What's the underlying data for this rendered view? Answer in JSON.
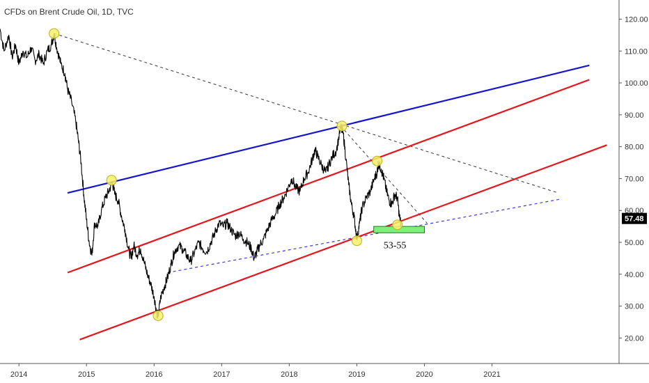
{
  "header": {
    "title": "CFDs on Brent Crude Oil, 1D, TVC"
  },
  "colors": {
    "price": "#000000",
    "blue_line": "#1515d1",
    "red_line": "#e8141c",
    "dashed_black": "#333333",
    "dashed_blue": "#3b3bd1",
    "marker_fill": "#f7f06a",
    "marker_stroke": "#b9b21b",
    "zone_fill": "#7ef07a",
    "zone_stroke": "#1f7a1f",
    "price_tag": "#000000",
    "axis_line": "#555555"
  },
  "chart_data": {
    "type": "line",
    "title": "CFDs on Brent Crude Oil, 1D, TVC",
    "xlabel": "",
    "ylabel": "",
    "ylim": [
      12,
      126
    ],
    "xlim": [
      2013.72,
      2022.88
    ],
    "x_ticks": [
      2014,
      2015,
      2016,
      2017,
      2018,
      2019,
      2020,
      2021
    ],
    "x_tick_labels": [
      "2014",
      "2015",
      "2016",
      "2017",
      "2018",
      "2019",
      "2020",
      "2021"
    ],
    "y_ticks": [
      20,
      30,
      40,
      50,
      60,
      70,
      80,
      90,
      100,
      110,
      120
    ],
    "y_tick_labels": [
      "20.00",
      "30.00",
      "40.00",
      "50.00",
      "60.00",
      "70.00",
      "80.00",
      "90.00",
      "100.00",
      "110.00",
      "120.00"
    ],
    "last_price": 57.48,
    "last_price_label": "57.48",
    "grid": false,
    "series": [
      {
        "points": [
          [
            2013.72,
            117
          ],
          [
            2013.78,
            110
          ],
          [
            2013.85,
            115
          ],
          [
            2013.9,
            108
          ],
          [
            2013.95,
            112
          ],
          [
            2014.0,
            106
          ],
          [
            2014.06,
            110
          ],
          [
            2014.12,
            108
          ],
          [
            2014.18,
            111
          ],
          [
            2014.24,
            107
          ],
          [
            2014.3,
            109
          ],
          [
            2014.36,
            106
          ],
          [
            2014.42,
            110
          ],
          [
            2014.48,
            112
          ],
          [
            2014.52,
            115.5
          ],
          [
            2014.56,
            111
          ],
          [
            2014.62,
            106
          ],
          [
            2014.68,
            103
          ],
          [
            2014.72,
            98
          ],
          [
            2014.78,
            94
          ],
          [
            2014.84,
            88
          ],
          [
            2014.88,
            82
          ],
          [
            2014.92,
            75
          ],
          [
            2014.96,
            65
          ],
          [
            2015.0,
            57
          ],
          [
            2015.04,
            50
          ],
          [
            2015.08,
            46
          ],
          [
            2015.12,
            56
          ],
          [
            2015.17,
            55
          ],
          [
            2015.22,
            60
          ],
          [
            2015.28,
            64
          ],
          [
            2015.33,
            66
          ],
          [
            2015.38,
            69
          ],
          [
            2015.42,
            65
          ],
          [
            2015.47,
            63
          ],
          [
            2015.52,
            58
          ],
          [
            2015.57,
            54
          ],
          [
            2015.62,
            48
          ],
          [
            2015.66,
            45
          ],
          [
            2015.7,
            49
          ],
          [
            2015.75,
            46
          ],
          [
            2015.8,
            48
          ],
          [
            2015.85,
            44
          ],
          [
            2015.9,
            40
          ],
          [
            2015.95,
            37
          ],
          [
            2016.0,
            33
          ],
          [
            2016.04,
            28
          ],
          [
            2016.06,
            27
          ],
          [
            2016.1,
            33
          ],
          [
            2016.15,
            36
          ],
          [
            2016.2,
            39
          ],
          [
            2016.25,
            43
          ],
          [
            2016.3,
            47
          ],
          [
            2016.36,
            49
          ],
          [
            2016.42,
            48
          ],
          [
            2016.48,
            46
          ],
          [
            2016.54,
            44
          ],
          [
            2016.6,
            47
          ],
          [
            2016.66,
            50
          ],
          [
            2016.72,
            48
          ],
          [
            2016.78,
            47
          ],
          [
            2016.84,
            50
          ],
          [
            2016.9,
            53
          ],
          [
            2016.96,
            56
          ],
          [
            2017.02,
            55
          ],
          [
            2017.08,
            56
          ],
          [
            2017.14,
            54
          ],
          [
            2017.2,
            52
          ],
          [
            2017.26,
            53
          ],
          [
            2017.32,
            51
          ],
          [
            2017.38,
            50
          ],
          [
            2017.44,
            48
          ],
          [
            2017.48,
            45
          ],
          [
            2017.52,
            47
          ],
          [
            2017.56,
            49
          ],
          [
            2017.62,
            51
          ],
          [
            2017.68,
            54
          ],
          [
            2017.74,
            57
          ],
          [
            2017.8,
            59
          ],
          [
            2017.86,
            62
          ],
          [
            2017.92,
            64
          ],
          [
            2017.98,
            67
          ],
          [
            2018.04,
            70
          ],
          [
            2018.1,
            67
          ],
          [
            2018.16,
            66
          ],
          [
            2018.22,
            70
          ],
          [
            2018.28,
            72
          ],
          [
            2018.34,
            76
          ],
          [
            2018.38,
            79
          ],
          [
            2018.42,
            77
          ],
          [
            2018.48,
            74
          ],
          [
            2018.54,
            72
          ],
          [
            2018.58,
            74
          ],
          [
            2018.64,
            77
          ],
          [
            2018.7,
            79
          ],
          [
            2018.76,
            86
          ],
          [
            2018.8,
            84
          ],
          [
            2018.84,
            76
          ],
          [
            2018.88,
            68
          ],
          [
            2018.92,
            62
          ],
          [
            2018.96,
            58
          ],
          [
            2019.0,
            51
          ],
          [
            2019.04,
            56
          ],
          [
            2019.08,
            61
          ],
          [
            2019.14,
            64
          ],
          [
            2019.2,
            66
          ],
          [
            2019.26,
            70
          ],
          [
            2019.3,
            72
          ],
          [
            2019.32,
            75
          ],
          [
            2019.36,
            73
          ],
          [
            2019.4,
            70
          ],
          [
            2019.44,
            66
          ],
          [
            2019.48,
            63
          ],
          [
            2019.52,
            62
          ],
          [
            2019.56,
            65
          ],
          [
            2019.6,
            64
          ],
          [
            2019.63,
            58
          ],
          [
            2019.65,
            56
          ]
        ]
      }
    ],
    "annotations": {
      "blue_line": [
        [
          2014.72,
          65.5
        ],
        [
          2022.44,
          105.5
        ]
      ],
      "red_upper": [
        [
          2014.72,
          40.5
        ],
        [
          2022.44,
          101
        ]
      ],
      "red_lower": [
        [
          2014.9,
          19.5
        ],
        [
          2022.7,
          80.5
        ]
      ],
      "dashed_black_1": [
        [
          2014.52,
          115.5
        ],
        [
          2021.98,
          65.5
        ]
      ],
      "dashed_black_2": [
        [
          2018.76,
          86.5
        ],
        [
          2020.04,
          56
        ]
      ],
      "dashed_blue": [
        [
          2016.2,
          40.5
        ],
        [
          2022.0,
          63.5
        ]
      ],
      "markers": [
        [
          2014.52,
          115.5
        ],
        [
          2015.37,
          69.5
        ],
        [
          2016.06,
          27
        ],
        [
          2018.78,
          86.5
        ],
        [
          2019.0,
          50.5
        ],
        [
          2019.3,
          75.5
        ],
        [
          2019.6,
          55.5
        ]
      ],
      "support_zone": {
        "x": [
          2019.25,
          2020.0
        ],
        "y": [
          53,
          55
        ],
        "label": "53-55"
      }
    }
  }
}
